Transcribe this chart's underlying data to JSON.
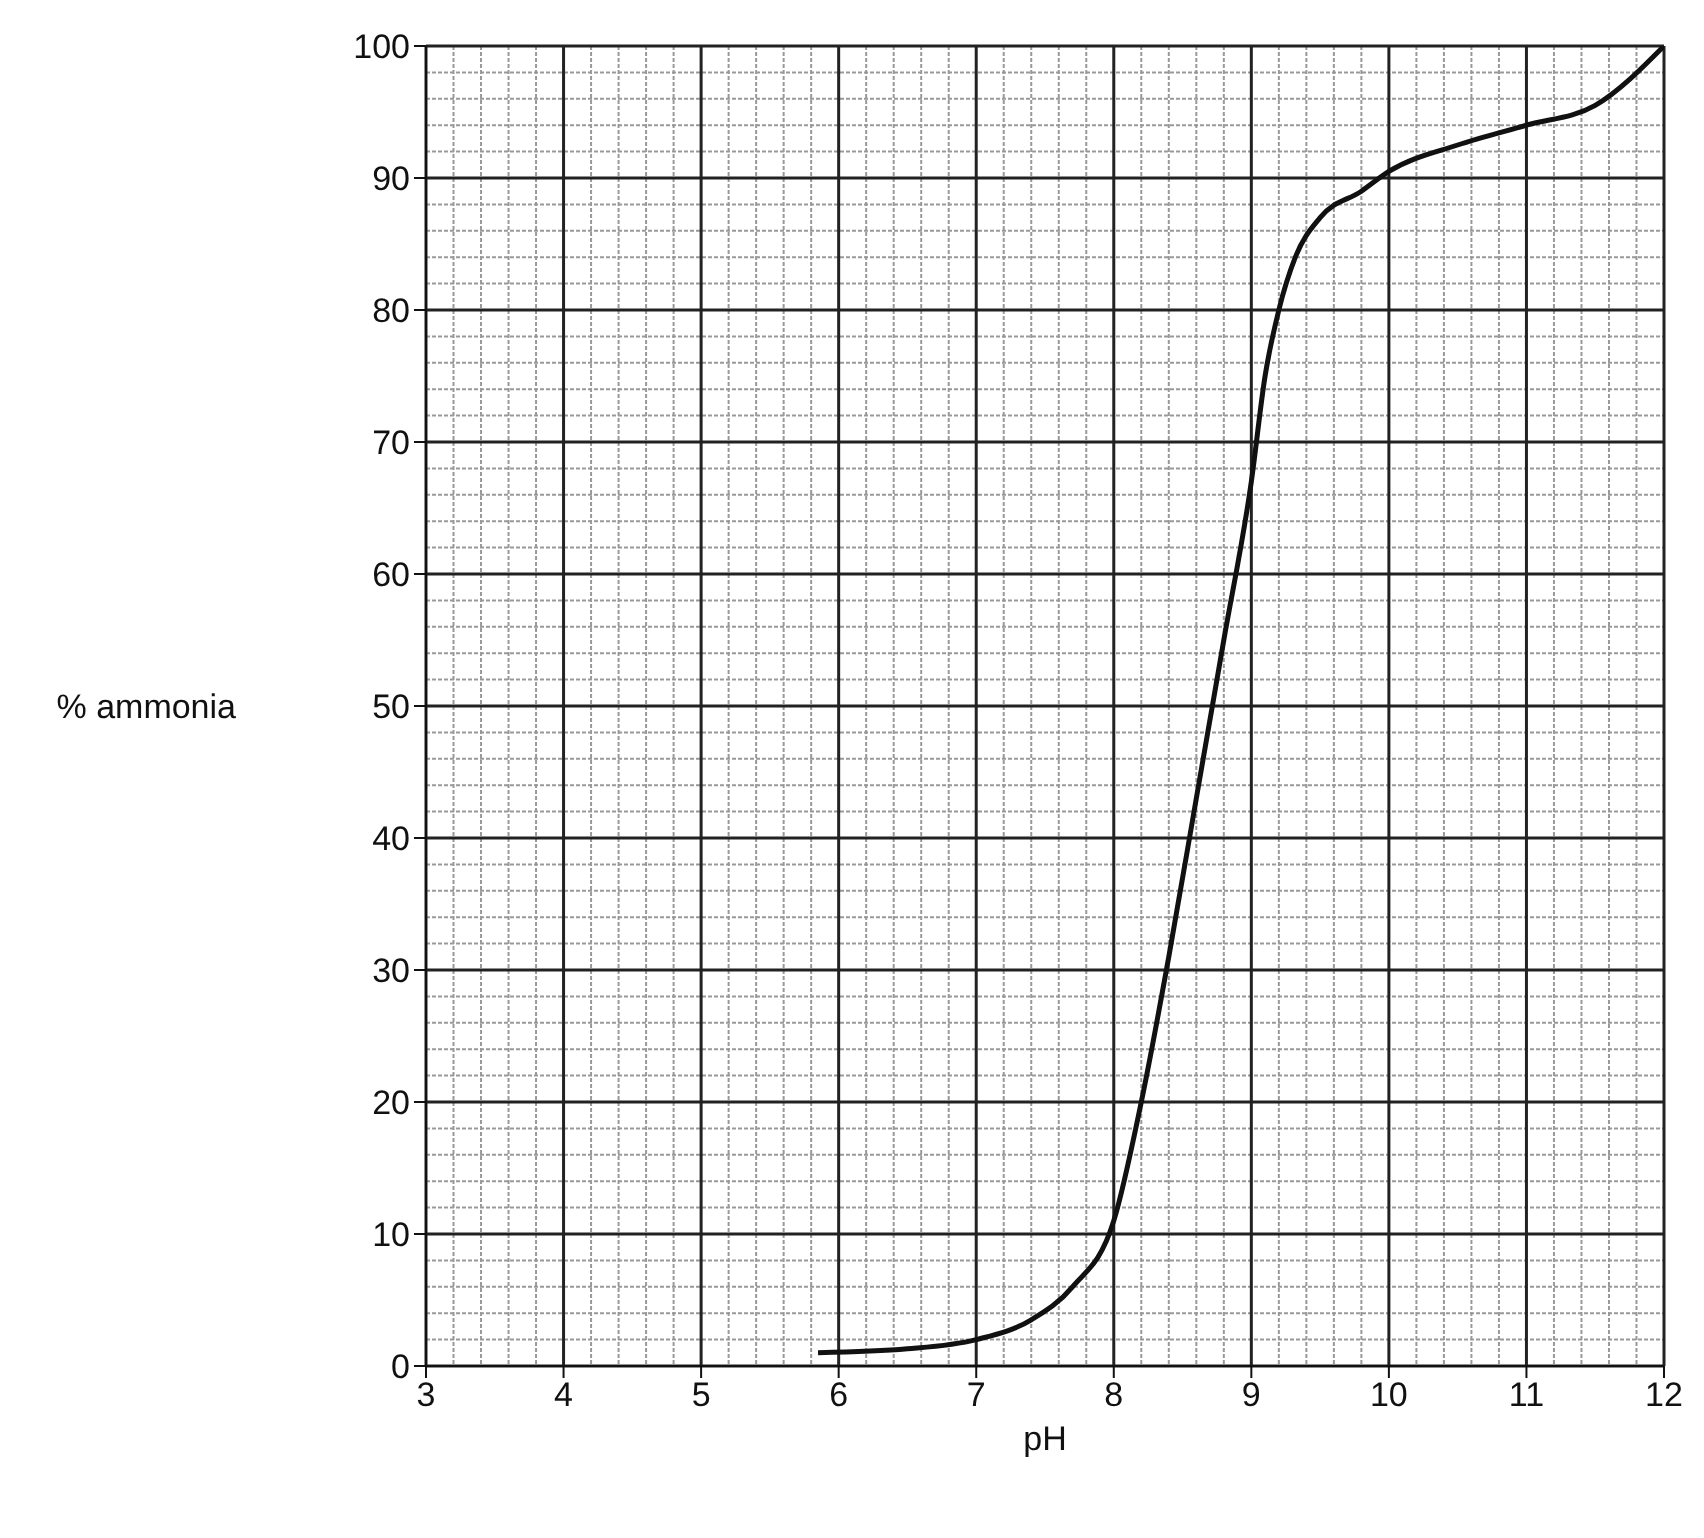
{
  "chart_data": {
    "type": "line",
    "xlabel": "pH",
    "ylabel": "% ammonia",
    "x": [
      5.85,
      6.5,
      7,
      7.4,
      7.7,
      8,
      8.2,
      8.4,
      8.6,
      8.8,
      9,
      9.1,
      9.2,
      9.32,
      9.5,
      9.8,
      10,
      10.5,
      11,
      11.5,
      12
    ],
    "series": [
      {
        "color": "#111111",
        "values": [
          1,
          1.3,
          2,
          3.5,
          6,
          11,
          20,
          31,
          43,
          55,
          67,
          75,
          80,
          84,
          87,
          89,
          90.5,
          92.5,
          94,
          95.5,
          100
        ]
      }
    ],
    "xlim": [
      3,
      12
    ],
    "xticks": [
      3,
      4,
      5,
      6,
      7,
      8,
      9,
      10,
      11,
      12
    ],
    "ylim": [
      0,
      100
    ],
    "yticks": [
      0,
      10,
      20,
      30,
      40,
      50,
      60,
      70,
      80,
      90,
      100
    ],
    "grid": true,
    "marker": "none",
    "line_style": "solid",
    "legend": false
  }
}
